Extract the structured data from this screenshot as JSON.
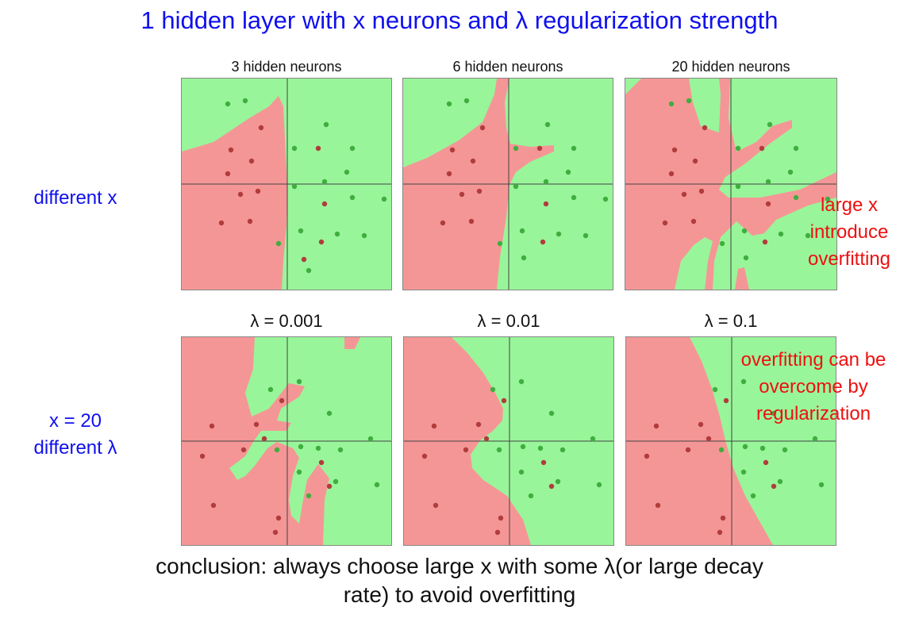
{
  "title": "1 hidden layer with x neurons and λ regularization strength",
  "top_row": {
    "label": "different x",
    "panels": [
      {
        "title": "3 hidden neurons"
      },
      {
        "title": "6 hidden neurons"
      },
      {
        "title": "20 hidden neurons"
      }
    ],
    "note": [
      "large x",
      "introduce",
      "overfitting"
    ]
  },
  "bottom_row": {
    "label": [
      "x = 20",
      "different λ"
    ],
    "panels": [
      {
        "title": "λ = 0.001"
      },
      {
        "title": "λ = 0.01"
      },
      {
        "title": "λ = 0.1"
      }
    ],
    "note": [
      "overfitting can be",
      "overcome by",
      "regularization"
    ]
  },
  "conclusion": [
    "conclusion: always choose large x with some λ(or large decay",
    "rate) to avoid overfitting"
  ],
  "colors": {
    "title": "#1010ee",
    "note": "#ee1010",
    "region_green": "#99f59a",
    "region_red": "#f59696",
    "point_green": "#3fae3f",
    "point_red": "#b13c3c"
  }
}
